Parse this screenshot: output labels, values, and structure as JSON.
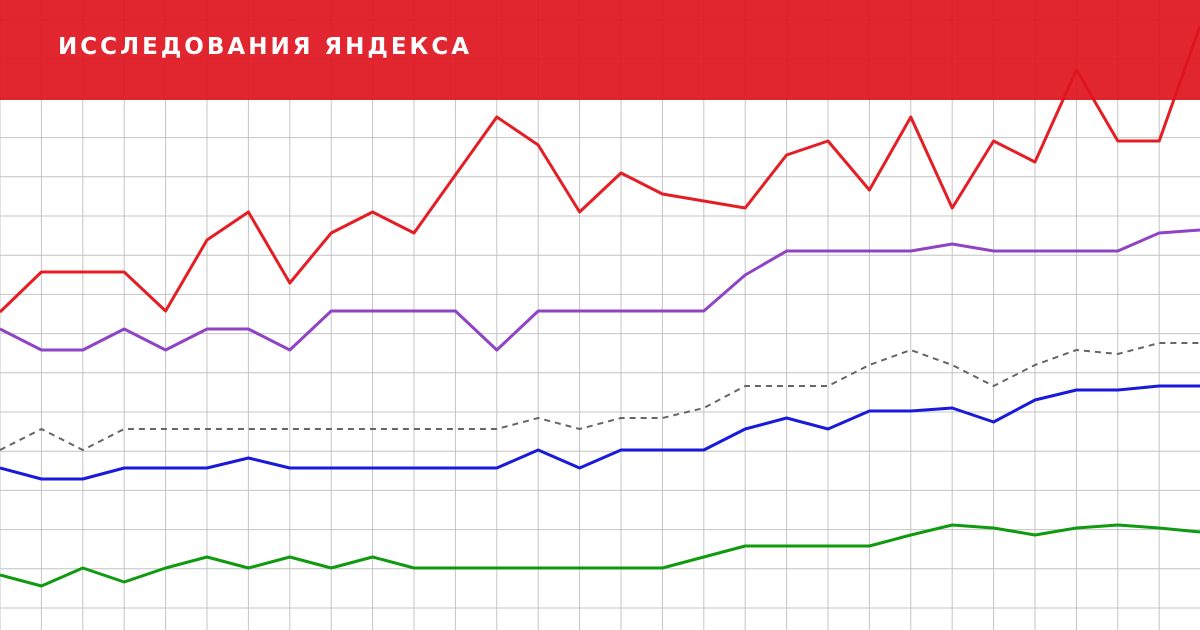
{
  "banner": {
    "title": "ИССЛЕДОВАНИЯ ЯНДЕКСА",
    "color": "#de141e"
  },
  "chart_data": {
    "type": "line",
    "title": "",
    "xlabel": "",
    "ylabel": "",
    "grid": true,
    "legend": "none",
    "x": [
      0,
      1,
      2,
      3,
      4,
      5,
      6,
      7,
      8,
      9,
      10,
      11,
      12,
      13,
      14,
      15,
      16,
      17,
      18,
      19,
      20,
      21,
      22,
      23,
      24,
      25,
      26,
      27,
      28,
      29
    ],
    "ylim": [
      0,
      630
    ],
    "series": [
      {
        "color": "#e31e24",
        "style": "solid",
        "values": [
          318,
          358,
          358,
          358,
          319,
          390,
          418,
          347,
          397,
          418,
          397,
          455,
          513,
          485,
          418,
          457,
          436,
          429,
          422,
          475,
          489,
          440,
          513,
          422,
          489,
          468,
          560,
          489,
          489,
          604
        ]
      },
      {
        "color": "#8e44c4",
        "style": "solid",
        "values": [
          301,
          280,
          280,
          301,
          280,
          301,
          301,
          280,
          319,
          319,
          319,
          319,
          280,
          319,
          319,
          319,
          319,
          319,
          355,
          379,
          379,
          379,
          379,
          386,
          379,
          379,
          379,
          379,
          397,
          400
        ]
      },
      {
        "color": "#666666",
        "style": "dashed",
        "values": [
          180,
          201,
          180,
          201,
          201,
          201,
          201,
          201,
          201,
          201,
          201,
          201,
          201,
          212,
          201,
          212,
          212,
          222,
          244,
          244,
          244,
          265,
          280,
          265,
          244,
          265,
          280,
          276,
          287,
          287
        ]
      },
      {
        "color": "#1a1adc",
        "style": "solid",
        "values": [
          162,
          151,
          151,
          162,
          162,
          162,
          172,
          162,
          162,
          162,
          162,
          162,
          162,
          180,
          162,
          180,
          180,
          180,
          201,
          212,
          201,
          219,
          219,
          222,
          208,
          230,
          240,
          240,
          244,
          244
        ]
      },
      {
        "color": "#0f9a0f",
        "style": "solid",
        "values": [
          55,
          44,
          62,
          48,
          62,
          73,
          62,
          73,
          62,
          73,
          62,
          62,
          62,
          62,
          62,
          62,
          62,
          73,
          84,
          84,
          84,
          84,
          95,
          105,
          102,
          95,
          102,
          105,
          102,
          98
        ]
      }
    ]
  }
}
